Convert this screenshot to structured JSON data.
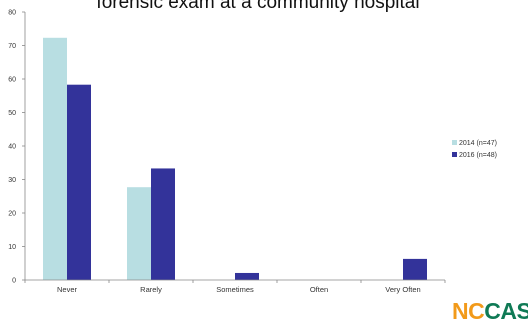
{
  "chart_data": {
    "type": "bar",
    "title": "forensic exam at a community hospital",
    "categories": [
      "Never",
      "Rarely",
      "Sometimes",
      "Often",
      "Very Often"
    ],
    "series": [
      {
        "name": "2014 (n=47)",
        "values": [
          72.3,
          27.7,
          0,
          0,
          0
        ],
        "color": "#b8dee2"
      },
      {
        "name": "2016 (n=48)",
        "values": [
          58.3,
          33.3,
          2.1,
          0,
          6.3
        ],
        "color": "#33339a"
      }
    ],
    "ylim": [
      0,
      80
    ],
    "yticks": [
      0,
      10,
      20,
      30,
      40,
      50,
      60,
      70,
      80
    ],
    "grid": false,
    "legend": "right"
  },
  "logo": {
    "part1": "NC",
    "part2": "CASA"
  }
}
